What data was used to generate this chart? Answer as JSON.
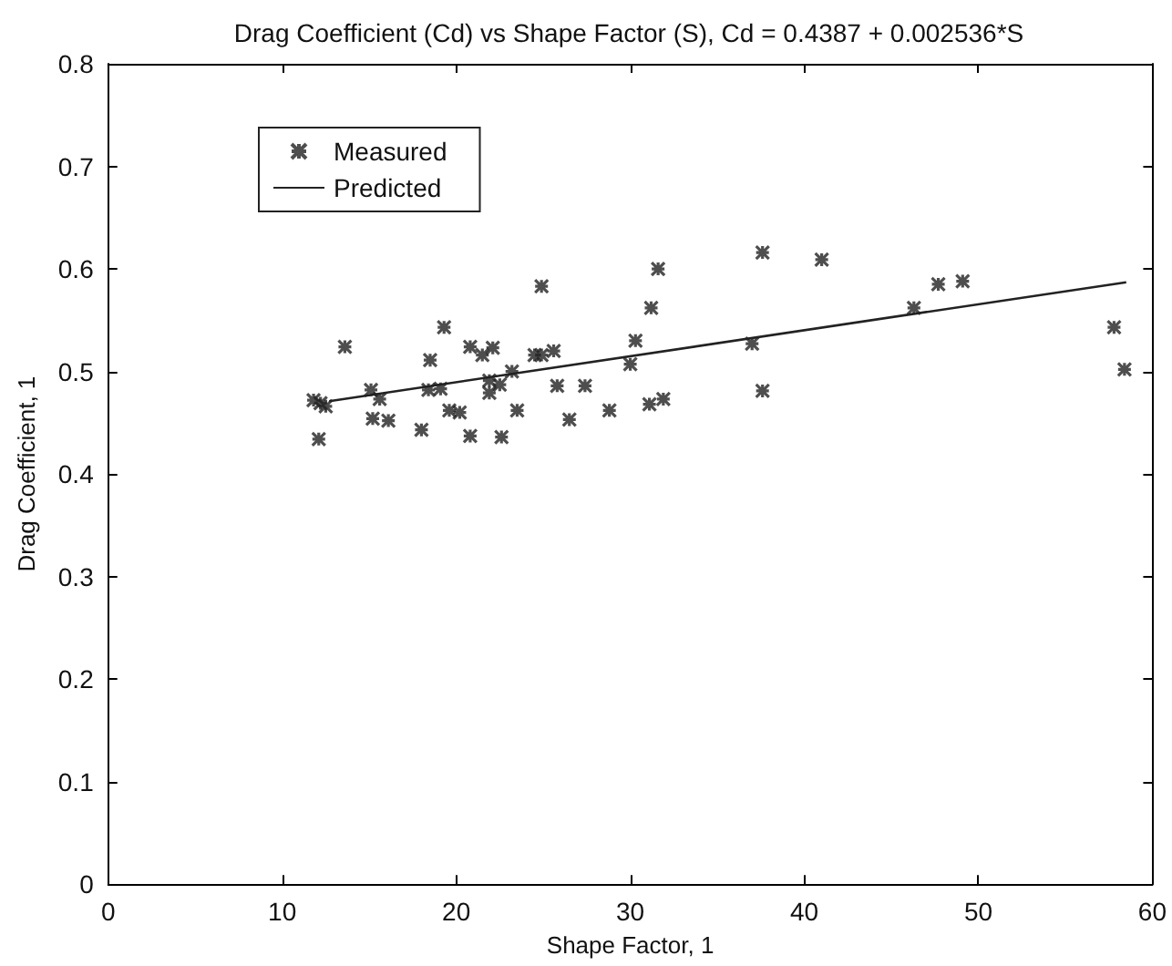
{
  "chart_data": {
    "type": "scatter",
    "title": "Drag Coefficient (Cd) vs Shape Factor (S), Cd = 0.4387 + 0.002536*S",
    "xlabel": "Shape Factor, 1",
    "ylabel": "Drag Coefficient, 1",
    "xlim": [
      0,
      60
    ],
    "xticks": [
      0,
      10,
      20,
      30,
      40,
      50,
      60
    ],
    "ylim": [
      0,
      0.8
    ],
    "yticks": [
      0,
      0.1,
      0.2,
      0.3,
      0.4,
      0.5,
      0.6,
      0.7,
      0.8
    ],
    "grid": false,
    "legend": "top left",
    "series": [
      {
        "name": "Measured",
        "marker": "cross",
        "color": "#222222",
        "x": [
          31.6,
          31.2,
          24.9,
          19.3,
          13.6,
          20.8,
          21.5,
          22.1,
          18.5,
          30.3,
          30.0,
          24.5,
          24.9,
          25.6,
          23.2,
          15.1,
          18.4,
          19.1,
          21.9,
          22.5,
          21.9,
          25.8,
          27.4,
          11.8,
          12.2,
          12.5,
          15.6,
          15.2,
          16.1,
          19.6,
          20.2,
          23.5,
          26.5,
          28.8,
          31.1,
          31.9,
          18.0,
          20.8,
          22.6,
          12.1,
          37.6,
          41.0,
          47.7,
          49.1,
          46.3,
          57.8,
          58.4,
          37.0,
          37.6
        ],
        "values": [
          0.6,
          0.562,
          0.583,
          0.543,
          0.524,
          0.524,
          0.516,
          0.523,
          0.511,
          0.53,
          0.507,
          0.516,
          0.516,
          0.52,
          0.5,
          0.482,
          0.482,
          0.483,
          0.491,
          0.487,
          0.479,
          0.486,
          0.486,
          0.472,
          0.469,
          0.466,
          0.473,
          0.454,
          0.452,
          0.462,
          0.46,
          0.462,
          0.453,
          0.462,
          0.468,
          0.473,
          0.443,
          0.437,
          0.436,
          0.434,
          0.616,
          0.609,
          0.585,
          0.588,
          0.562,
          0.543,
          0.502,
          0.527,
          0.481
        ]
      },
      {
        "name": "Predicted",
        "type": "line",
        "marker": "none",
        "line_style": "solid",
        "color": "#222222",
        "x": [
          12.7,
          58.5
        ],
        "values": [
          0.471,
          0.587
        ]
      }
    ]
  }
}
